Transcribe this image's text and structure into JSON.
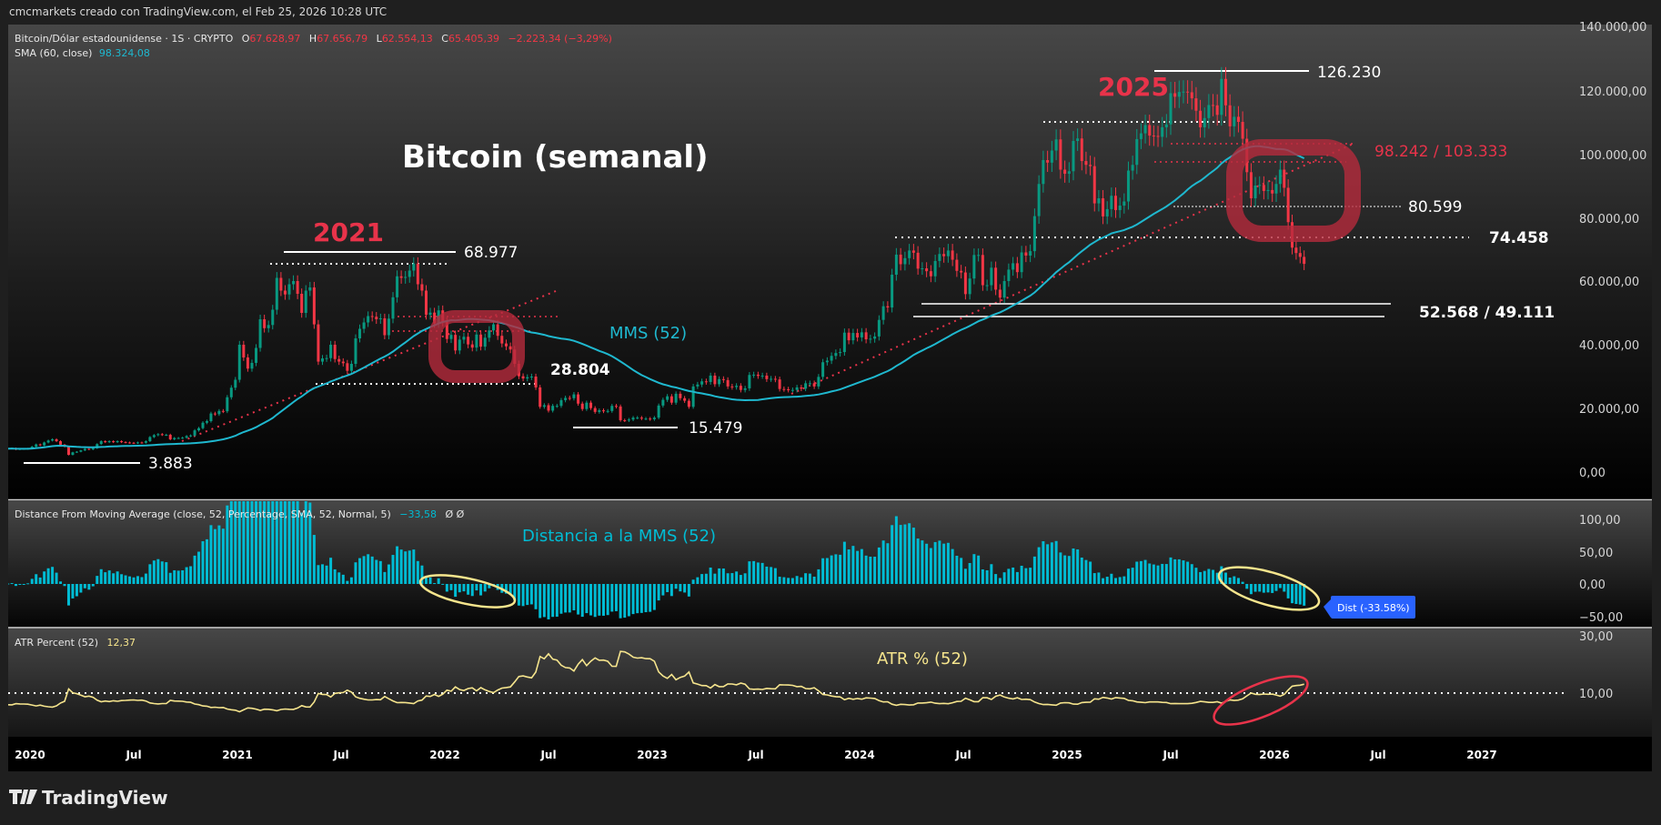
{
  "caption": "cmcmarkets creado con TradingView.com, el Feb 25, 2026 10:28 UTC",
  "legend": {
    "symbol": "Bitcoin/Dólar estadounidense · 1S · CRYPTO",
    "o_label": "O",
    "o": "67.628,97",
    "h_label": "H",
    "h": "67.656,79",
    "l_label": "L",
    "l": "62.554,13",
    "c_label": "C",
    "c": "65.405,39",
    "change": "−2.223,34 (−3,29%)",
    "sma_label": "SMA (60, close)",
    "sma_value": "98.324,08"
  },
  "annotations": {
    "title": "Bitcoin (semanal)",
    "year_2021": "2021",
    "year_2025": "2025",
    "lvl_68977": "68.977",
    "lvl_3883": "3.883",
    "lvl_15479": "15.479",
    "lvl_28804": "28.804",
    "lvl_126230": "126.230",
    "lvl_98242_103333": "98.242 / 103.333",
    "lvl_80599": "80.599",
    "lvl_74458": "74.458",
    "lvl_52568_49111": "52.568 / 49.111",
    "mms_label": "MMS (52)",
    "dist_label": "Distancia a la MMS (52)",
    "atr_label": "ATR % (52)"
  },
  "distance_panel": {
    "title": "Distance From Moving Average (close, 52, Percentage, SMA, 52, Normal, 5)",
    "value": "−33,58",
    "flags": "Ø  Ø",
    "tag": "Dist (-33.58%)",
    "axis": [
      "100,00",
      "50,00",
      "0,00",
      "−50,00"
    ]
  },
  "atr_panel": {
    "title": "ATR Percent (52)",
    "value": "12,37",
    "axis": [
      "30,00",
      "10,00"
    ]
  },
  "price_axis": [
    "140.000,00",
    "120.000,00",
    "100.000,00",
    "80.000,00",
    "60.000,00",
    "40.000,00",
    "20.000,00",
    "0,00"
  ],
  "time_axis": [
    "2020",
    "Jul",
    "2021",
    "Jul",
    "2022",
    "Jul",
    "2023",
    "Jul",
    "2024",
    "Jul",
    "2025",
    "Jul",
    "2026",
    "Jul",
    "2027"
  ],
  "logo": "TradingView",
  "colors": {
    "up": "#089981",
    "down": "#f23645",
    "sma": "#1fb8cf",
    "dist": "#00bcd4",
    "atr": "#f6e58d",
    "annotation_red": "#e8334a",
    "tag_blue": "#2962ff"
  },
  "chart_data": {
    "type": "candlestick",
    "interval": "weekly",
    "ylim_price": [
      0,
      140000
    ],
    "ylim_distance": [
      -50,
      100
    ],
    "ylim_atr": [
      0,
      30
    ],
    "series_price_units": "USD thousands (approximate weekly close)",
    "weekly_close": {
      "2019": [
        7.3,
        7.4,
        7.5,
        7.1,
        7.3,
        7.3,
        7.4
      ],
      "2020": [
        8.0,
        8.7,
        8.4,
        9.3,
        9.9,
        10.3,
        9.7,
        8.6,
        8.0,
        5.4,
        6.2,
        6.4,
        6.8,
        7.3,
        7.1,
        7.5,
        8.8,
        9.7,
        9.4,
        9.7,
        9.4,
        9.7,
        9.4,
        9.3,
        9.2,
        9.1,
        9.3,
        9.2,
        9.7,
        11.0,
        11.6,
        11.9,
        11.7,
        11.7,
        10.3,
        10.7,
        10.7,
        10.8,
        11.3,
        11.5,
        13.1,
        13.8,
        15.5,
        16.0,
        18.4,
        18.2,
        19.2,
        19.1,
        23.5,
        26.5,
        29.0
      ],
      "2021": [
        40.0,
        36.0,
        32.5,
        34.3,
        39.0,
        48.0,
        45.2,
        46.2,
        51.0,
        61.0,
        57.0,
        55.8,
        59.0,
        60.0,
        56.0,
        50.0,
        57.0,
        58.0,
        46.4,
        34.7,
        35.7,
        35.8,
        40.0,
        35.5,
        34.7,
        34.2,
        31.8,
        34.0,
        42.0,
        45.0,
        47.0,
        49.0,
        48.8,
        48.0,
        48.3,
        43.0,
        48.2,
        54.9,
        61.5,
        61.0,
        61.3,
        63.3,
        65.5,
        59.0,
        57.0,
        49.4,
        50.1,
        46.7,
        50.8,
        47.2
      ],
      "2022": [
        41.8,
        43.1,
        38.2,
        41.6,
        42.5,
        40.1,
        39.1,
        43.2,
        39.4,
        42.2,
        44.5,
        46.4,
        42.8,
        40.4,
        39.5,
        38.5,
        34.0,
        30.1,
        29.4,
        29.8,
        30.0,
        26.6,
        20.5,
        21.0,
        19.3,
        20.8,
        20.8,
        22.6,
        23.3,
        23.2,
        24.4,
        21.5,
        19.8,
        21.8,
        20.1,
        18.9,
        19.4,
        19.1,
        19.2,
        20.8,
        20.6,
        16.3,
        16.2,
        16.5,
        17.1,
        17.1,
        16.8,
        16.8,
        16.6
      ],
      "2023": [
        17.1,
        20.9,
        22.7,
        23.8,
        21.8,
        24.6,
        23.2,
        22.4,
        20.5,
        26.9,
        27.5,
        28.5,
        28.3,
        30.3,
        27.6,
        29.2,
        28.9,
        26.9,
        26.7,
        27.1,
        25.8,
        26.3,
        30.5,
        30.6,
        30.2,
        30.3,
        29.2,
        29.3,
        29.1,
        26.1,
        26.0,
        25.8,
        25.8,
        26.6,
        26.2,
        27.9,
        27.9,
        26.9,
        29.9,
        34.5,
        35.0,
        36.5,
        37.4,
        37.7,
        43.8,
        41.4,
        43.7,
        42.3
      ],
      "2024": [
        43.9,
        41.7,
        41.9,
        42.6,
        47.8,
        52.1,
        51.7,
        62.0,
        68.3,
        65.3,
        67.2,
        69.6,
        68.9,
        63.9,
        64.0,
        63.1,
        61.5,
        66.3,
        68.5,
        67.8,
        69.6,
        66.7,
        63.2,
        62.7,
        55.9,
        60.8,
        68.2,
        68.2,
        58.7,
        58.7,
        64.2,
        57.3,
        54.8,
        60.0,
        63.6,
        65.6,
        62.8,
        69.0,
        68.0,
        69.4,
        80.4,
        90.5,
        98.0,
        97.2,
        101.0,
        104.5,
        95.0,
        93.7
      ],
      "2025": [
        94.5,
        104.0,
        104.8,
        97.7,
        96.5,
        96.1,
        84.4,
        86.0,
        80.3,
        82.6,
        86.8,
        82.3,
        83.7,
        85.0,
        94.7,
        96.5,
        104.6,
        106.4,
        109.0,
        105.7,
        105.6,
        105.3,
        108.3,
        109.2,
        119.0,
        117.9,
        119.4,
        119.5,
        119.3,
        117.4,
        113.5,
        108.3,
        111.2,
        115.3,
        115.2,
        112.2,
        123.5,
        115.2,
        108.6,
        111.6,
        110.0,
        104.7,
        94.2,
        86.0,
        90.0,
        90.2,
        88.3,
        88.6,
        87.5
      ],
      "2026": [
        90.5,
        95.0,
        89.3,
        78.5,
        70.5,
        68.8,
        67.6,
        65.4
      ]
    }
  }
}
